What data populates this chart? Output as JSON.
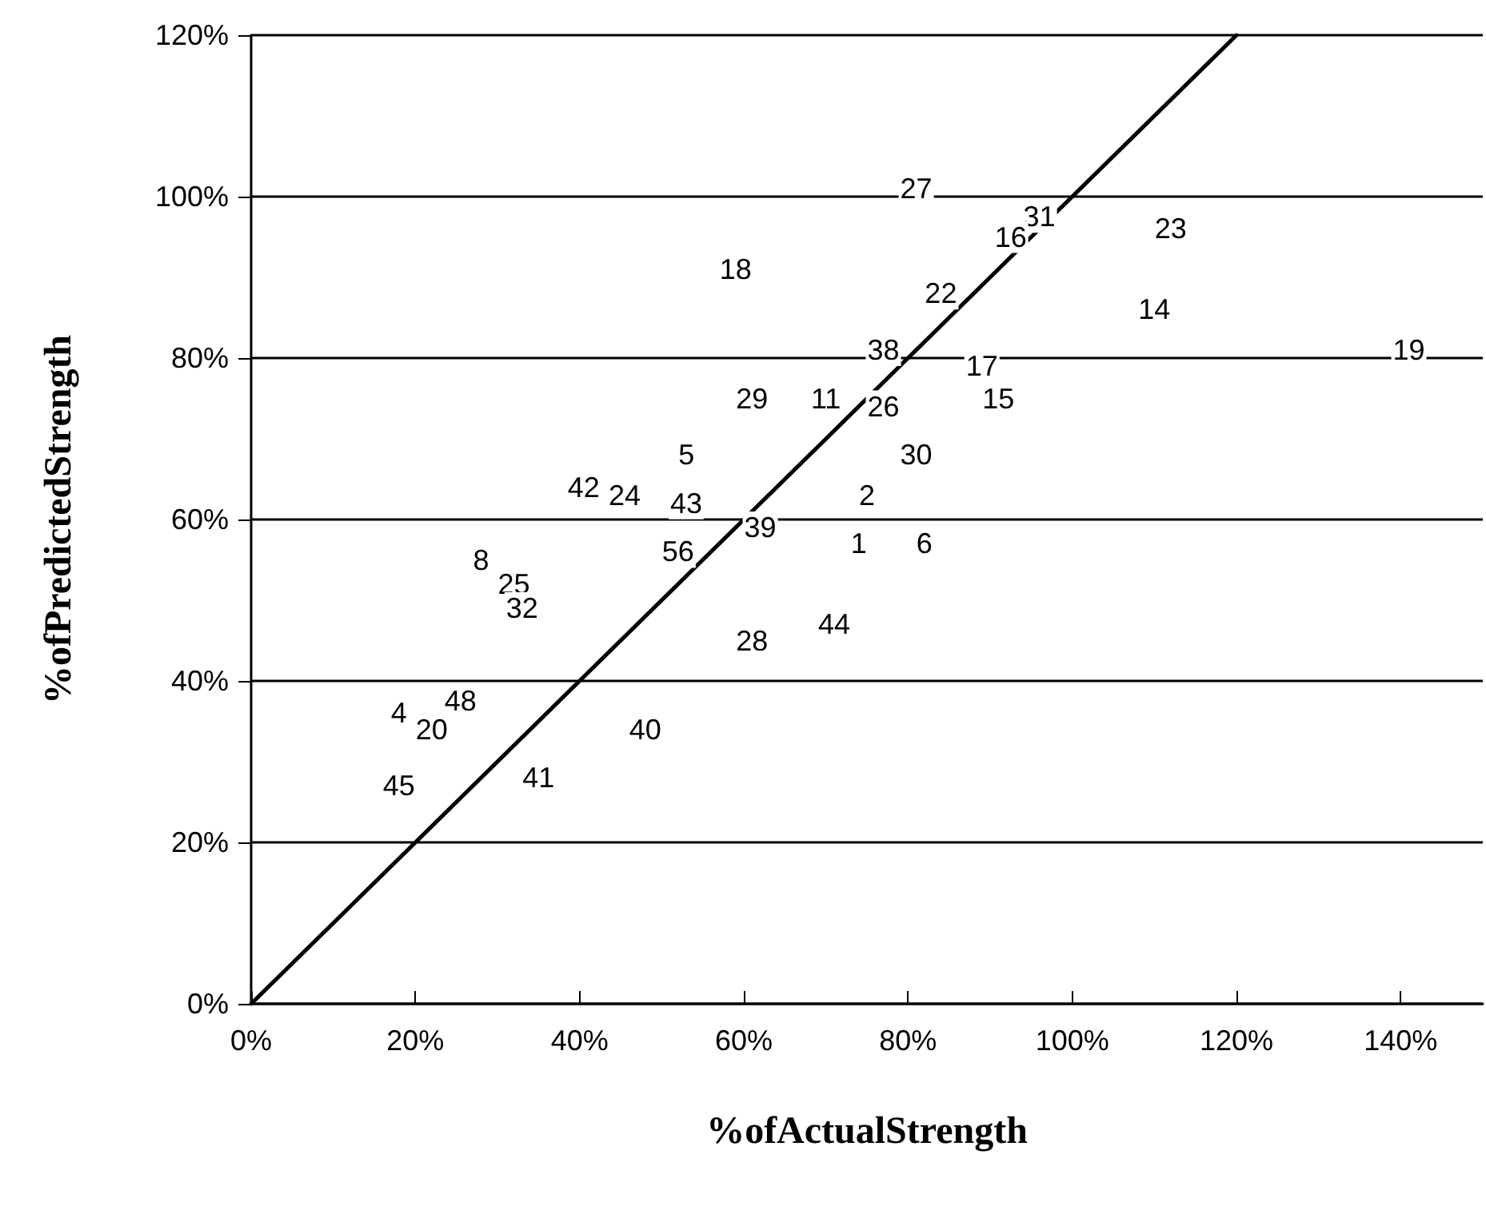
{
  "chart_data": {
    "type": "line",
    "xlabel": "%ofActualStrength",
    "ylabel": "%ofPredictedStrength",
    "xlim": [
      0,
      150
    ],
    "ylim": [
      0,
      120
    ],
    "xticks": [
      {
        "value": 0,
        "label": "0%"
      },
      {
        "value": 20,
        "label": "20%"
      },
      {
        "value": 40,
        "label": "40%"
      },
      {
        "value": 60,
        "label": "60%"
      },
      {
        "value": 80,
        "label": "80%"
      },
      {
        "value": 100,
        "label": "100%"
      },
      {
        "value": 120,
        "label": "120%"
      },
      {
        "value": 140,
        "label": "140%"
      }
    ],
    "yticks": [
      {
        "value": 0,
        "label": "0%"
      },
      {
        "value": 20,
        "label": "20%"
      },
      {
        "value": 40,
        "label": "40%"
      },
      {
        "value": 60,
        "label": "60%"
      },
      {
        "value": 80,
        "label": "80%"
      },
      {
        "value": 100,
        "label": "100%"
      },
      {
        "value": 120,
        "label": "120%"
      }
    ],
    "grid": "y",
    "series": [
      {
        "color": "#000000",
        "line_style": "solid",
        "x": [
          0,
          120
        ],
        "values": [
          0,
          120
        ]
      }
    ],
    "annotations": [
      {
        "text": "27",
        "x": 81,
        "y": 101
      },
      {
        "text": "18",
        "x": 59,
        "y": 91
      },
      {
        "text": "31",
        "x": 96,
        "y": 97.5
      },
      {
        "text": "16",
        "x": 92.5,
        "y": 95
      },
      {
        "text": "23",
        "x": 112,
        "y": 96
      },
      {
        "text": "22",
        "x": 84,
        "y": 88
      },
      {
        "text": "14",
        "x": 110,
        "y": 86
      },
      {
        "text": "38",
        "x": 77,
        "y": 81
      },
      {
        "text": "19",
        "x": 141,
        "y": 81
      },
      {
        "text": "17",
        "x": 89,
        "y": 79
      },
      {
        "text": "29",
        "x": 61,
        "y": 75
      },
      {
        "text": "11",
        "x": 70,
        "y": 75
      },
      {
        "text": "26",
        "x": 77,
        "y": 74
      },
      {
        "text": "15",
        "x": 91,
        "y": 75
      },
      {
        "text": "5",
        "x": 53,
        "y": 68
      },
      {
        "text": "30",
        "x": 81,
        "y": 68
      },
      {
        "text": "42",
        "x": 40.5,
        "y": 64
      },
      {
        "text": "24",
        "x": 45.5,
        "y": 63
      },
      {
        "text": "43",
        "x": 53,
        "y": 62
      },
      {
        "text": "2",
        "x": 75,
        "y": 63
      },
      {
        "text": "39",
        "x": 62,
        "y": 59
      },
      {
        "text": "1",
        "x": 74,
        "y": 57
      },
      {
        "text": "6",
        "x": 82,
        "y": 57
      },
      {
        "text": "56",
        "x": 52,
        "y": 56
      },
      {
        "text": "8",
        "x": 28,
        "y": 55
      },
      {
        "text": "25",
        "x": 32,
        "y": 52
      },
      {
        "text": "32",
        "x": 33,
        "y": 49
      },
      {
        "text": "28",
        "x": 61,
        "y": 45
      },
      {
        "text": "44",
        "x": 71,
        "y": 47
      },
      {
        "text": "48",
        "x": 25.5,
        "y": 37.5
      },
      {
        "text": "4",
        "x": 18,
        "y": 36
      },
      {
        "text": "20",
        "x": 22,
        "y": 34
      },
      {
        "text": "40",
        "x": 48,
        "y": 34
      },
      {
        "text": "45",
        "x": 18,
        "y": 27
      },
      {
        "text": "41",
        "x": 35,
        "y": 28
      }
    ]
  }
}
